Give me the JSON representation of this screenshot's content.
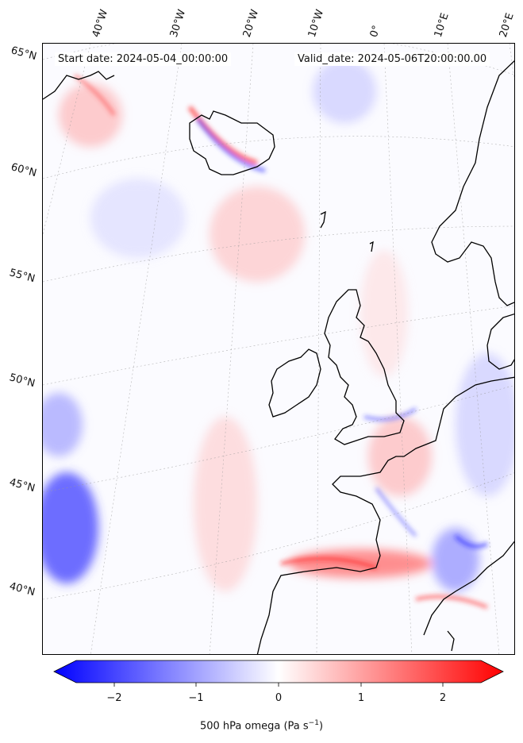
{
  "map": {
    "start_date_text": "Start date: 2024-05-04_00:00:00",
    "valid_date_text": "Valid_date: 2024-05-06T20:00:00.00",
    "lat_labels": [
      "65°N",
      "60°N",
      "55°N",
      "50°N",
      "45°N",
      "40°N"
    ],
    "lon_labels": [
      "40°W",
      "30°W",
      "20°W",
      "10°W",
      "0°",
      "10°E",
      "20°E"
    ],
    "field": "500 hPa omega",
    "colors": {
      "negative": "#0000ff",
      "zero": "#ffffff",
      "positive": "#ff0000",
      "coast": "#000000"
    }
  },
  "colorbar": {
    "label_prefix": "500 hPa omega (Pa s",
    "label_exp": "−1",
    "label_suffix": ")",
    "ticks": [
      "−2",
      "−1",
      "0",
      "1",
      "2"
    ],
    "range": [
      -2.6,
      2.6
    ],
    "extend": "both"
  }
}
